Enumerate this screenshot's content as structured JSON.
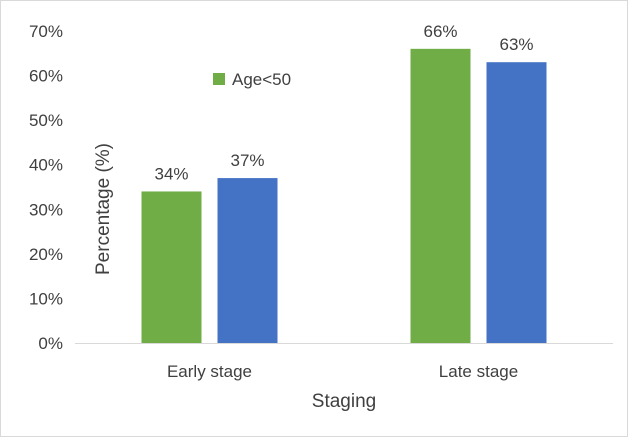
{
  "chart_data": {
    "type": "bar",
    "categories": [
      "Early stage",
      "Late stage"
    ],
    "series": [
      {
        "name": "Age<50",
        "values": [
          34,
          66
        ],
        "color": "#70ad47"
      },
      {
        "values": [
          37,
          63
        ],
        "color": "#4472c4"
      }
    ],
    "data_labels": [
      [
        "34%",
        "66%"
      ],
      [
        "37%",
        "63%"
      ]
    ],
    "xlabel": "Staging",
    "ylabel": "Percentage (%)",
    "ylim": [
      0,
      70
    ],
    "y_ticks": [
      0,
      10,
      20,
      30,
      40,
      50,
      60,
      70
    ],
    "y_tick_labels": [
      "0%",
      "10%",
      "20%",
      "30%",
      "40%",
      "50%",
      "60%",
      "70%"
    ],
    "legend": {
      "placement": "top-left inside plot",
      "entries": [
        "Age<50"
      ]
    },
    "grid": false,
    "axis_color": "#d9d9d9"
  }
}
